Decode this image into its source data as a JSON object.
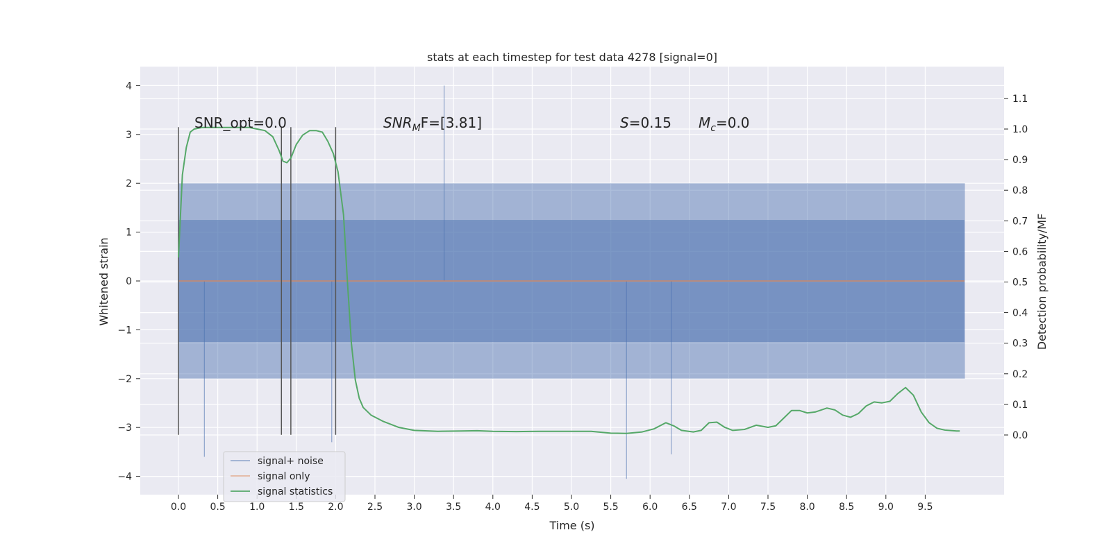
{
  "chart_data": {
    "type": "line",
    "title": "stats at each timestep for test data 4278 [signal=0]",
    "xlabel": "Time (s)",
    "ylabel": "Whitened strain",
    "ylabel_right": "Detection probability/MF",
    "xlim": [
      -0.5,
      10.5
    ],
    "ylim": [
      -4.2,
      4.4
    ],
    "ylim_right": [
      -0.2,
      1.2
    ],
    "x_ticks": [
      "0.0",
      "0.5",
      "1.0",
      "1.5",
      "2.0",
      "2.5",
      "3.0",
      "3.5",
      "4.0",
      "4.5",
      "5.0",
      "5.5",
      "6.0",
      "6.5",
      "7.0",
      "7.5",
      "8.0",
      "8.5",
      "9.0",
      "9.5"
    ],
    "x_tick_values": [
      0.0,
      0.5,
      1.0,
      1.5,
      2.0,
      2.5,
      3.0,
      3.5,
      4.0,
      4.5,
      5.0,
      5.5,
      6.0,
      6.5,
      7.0,
      7.5,
      8.0,
      8.5,
      9.0,
      9.5
    ],
    "y_ticks": [
      "−4",
      "−3",
      "−2",
      "−1",
      "0",
      "1",
      "2",
      "3",
      "4"
    ],
    "y_tick_values": [
      -4,
      -3,
      -2,
      -1,
      0,
      1,
      2,
      3,
      4
    ],
    "y_right_ticks": [
      "0.0",
      "0.1",
      "0.2",
      "0.3",
      "0.4",
      "0.5",
      "0.6",
      "0.7",
      "0.8",
      "0.9",
      "1.0",
      "1.1"
    ],
    "y_right_tick_values": [
      0.0,
      0.1,
      0.2,
      0.3,
      0.4,
      0.5,
      0.6,
      0.7,
      0.8,
      0.9,
      1.0,
      1.1
    ],
    "grid": true,
    "legend_position": "bottom-left",
    "annotations": {
      "snr_opt": "SNR_opt=0.0",
      "snr_mf_italic": "SNR",
      "snr_mf_sub": "M",
      "snr_mf_tail": "F=[3.81]",
      "s_italic": "S",
      "s_tail": "=0.15",
      "mc_italic": "M",
      "mc_sub": "c",
      "mc_tail": "=0.0"
    },
    "vertical_markers": [
      0.0,
      1.31,
      1.43,
      2.0
    ],
    "series": [
      {
        "name": "signal+ noise",
        "color": "#4c72b0",
        "x_range": [
          0.0,
          10.0
        ],
        "amplitude_typical": [
          -2.2,
          2.2
        ],
        "amplitude_extremes": {
          "max": 4.0,
          "min": -4.05
        }
      },
      {
        "name": "signal only",
        "color": "#dd8452",
        "x_range": [
          0.0,
          10.0
        ],
        "y": 0.0
      },
      {
        "name": "signal statistics",
        "color": "#55a868",
        "axis": "right",
        "points": [
          [
            0.0,
            0.58
          ],
          [
            0.05,
            0.85
          ],
          [
            0.1,
            0.94
          ],
          [
            0.15,
            0.99
          ],
          [
            0.2,
            1.0
          ],
          [
            0.3,
            1.005
          ],
          [
            0.5,
            1.005
          ],
          [
            0.7,
            1.005
          ],
          [
            0.9,
            1.005
          ],
          [
            1.0,
            1.0
          ],
          [
            1.1,
            0.995
          ],
          [
            1.2,
            0.975
          ],
          [
            1.28,
            0.93
          ],
          [
            1.33,
            0.895
          ],
          [
            1.38,
            0.89
          ],
          [
            1.43,
            0.905
          ],
          [
            1.5,
            0.95
          ],
          [
            1.58,
            0.98
          ],
          [
            1.67,
            0.995
          ],
          [
            1.75,
            0.995
          ],
          [
            1.83,
            0.99
          ],
          [
            1.9,
            0.96
          ],
          [
            1.97,
            0.92
          ],
          [
            2.03,
            0.86
          ],
          [
            2.1,
            0.72
          ],
          [
            2.15,
            0.5
          ],
          [
            2.2,
            0.3
          ],
          [
            2.25,
            0.18
          ],
          [
            2.3,
            0.12
          ],
          [
            2.35,
            0.09
          ],
          [
            2.45,
            0.065
          ],
          [
            2.6,
            0.045
          ],
          [
            2.8,
            0.025
          ],
          [
            3.0,
            0.015
          ],
          [
            3.3,
            0.012
          ],
          [
            3.6,
            0.013
          ],
          [
            3.8,
            0.014
          ],
          [
            4.0,
            0.012
          ],
          [
            4.3,
            0.011
          ],
          [
            4.6,
            0.012
          ],
          [
            5.0,
            0.012
          ],
          [
            5.25,
            0.012
          ],
          [
            5.5,
            0.006
          ],
          [
            5.7,
            0.005
          ],
          [
            5.9,
            0.01
          ],
          [
            6.05,
            0.02
          ],
          [
            6.2,
            0.04
          ],
          [
            6.3,
            0.03
          ],
          [
            6.4,
            0.015
          ],
          [
            6.55,
            0.01
          ],
          [
            6.65,
            0.015
          ],
          [
            6.75,
            0.04
          ],
          [
            6.85,
            0.042
          ],
          [
            6.95,
            0.025
          ],
          [
            7.05,
            0.015
          ],
          [
            7.2,
            0.018
          ],
          [
            7.35,
            0.032
          ],
          [
            7.5,
            0.025
          ],
          [
            7.6,
            0.03
          ],
          [
            7.7,
            0.055
          ],
          [
            7.8,
            0.08
          ],
          [
            7.9,
            0.08
          ],
          [
            8.0,
            0.072
          ],
          [
            8.1,
            0.075
          ],
          [
            8.25,
            0.088
          ],
          [
            8.35,
            0.082
          ],
          [
            8.45,
            0.065
          ],
          [
            8.55,
            0.058
          ],
          [
            8.65,
            0.07
          ],
          [
            8.75,
            0.095
          ],
          [
            8.85,
            0.108
          ],
          [
            8.95,
            0.105
          ],
          [
            9.05,
            0.11
          ],
          [
            9.15,
            0.135
          ],
          [
            9.25,
            0.155
          ],
          [
            9.35,
            0.13
          ],
          [
            9.45,
            0.075
          ],
          [
            9.55,
            0.04
          ],
          [
            9.65,
            0.022
          ],
          [
            9.75,
            0.016
          ],
          [
            9.9,
            0.013
          ],
          [
            9.94,
            0.013
          ]
        ]
      }
    ]
  }
}
